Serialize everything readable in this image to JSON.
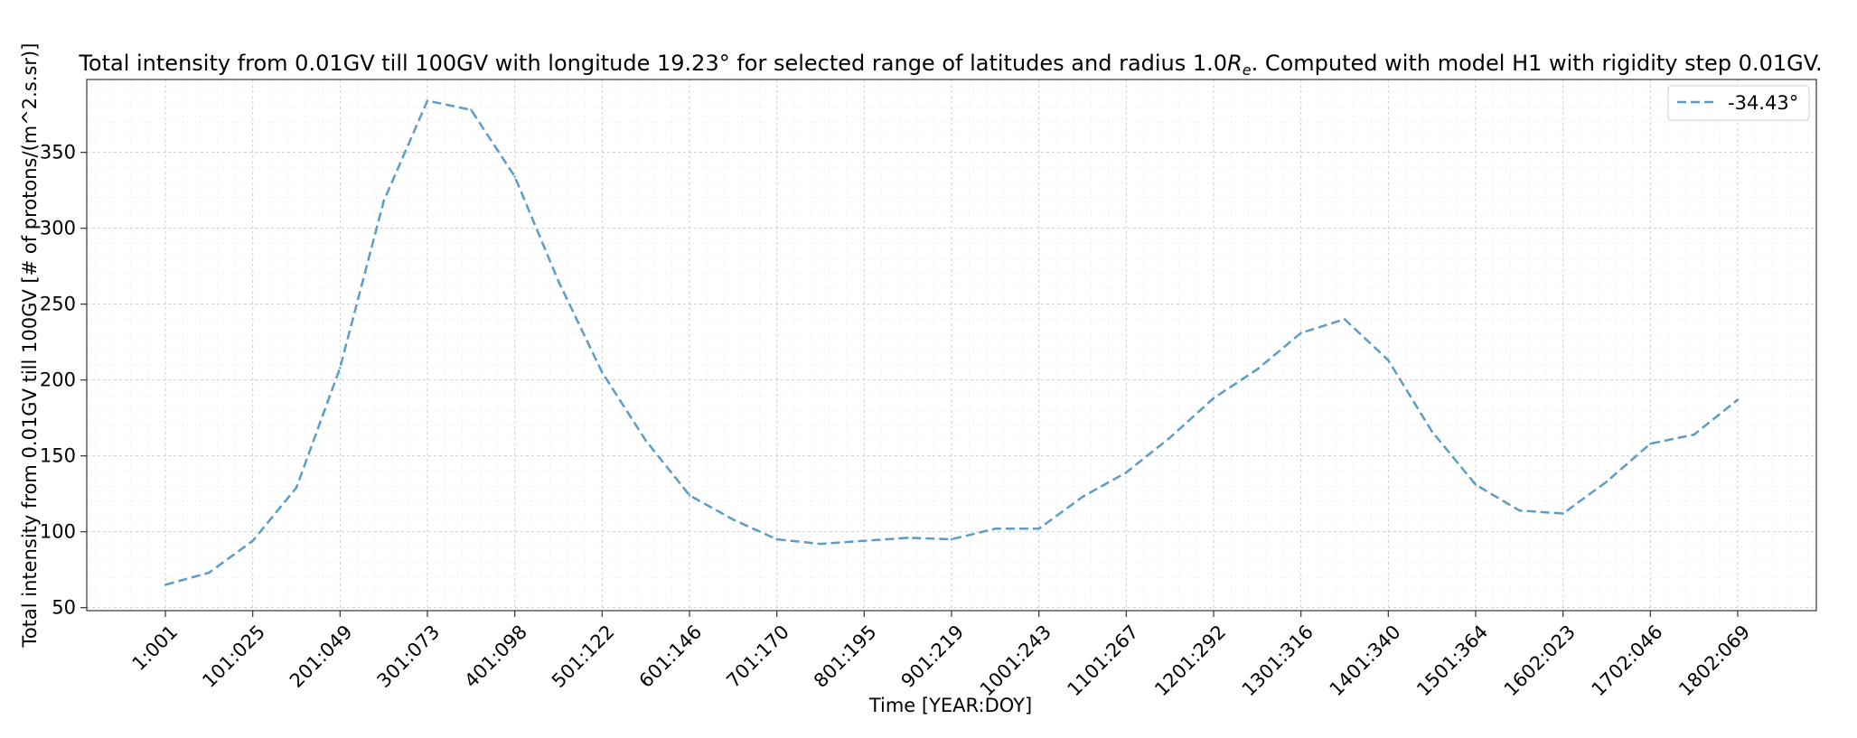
{
  "chart_data": {
    "type": "line",
    "title_main": "Total intensity from 0.01GV till 100GV with longitude 19.23° for selected range of latitudes and radius 1.0",
    "title_symbol": "R",
    "title_subscript": "e",
    "title_tail": ". Computed with model H1 with rigidity step 0.01GV.",
    "xlabel": "Time [YEAR:DOY]",
    "ylabel": "Total intensity from 0.01GV till 100GV [# of protons/(m^2.s.sr)]",
    "x_tick_labels": [
      "1:001",
      "101:025",
      "201:049",
      "301:073",
      "401:098",
      "501:122",
      "601:146",
      "701:170",
      "801:195",
      "901:219",
      "1001:243",
      "1101:267",
      "1201:292",
      "1301:316",
      "1401:340",
      "1501:364",
      "1602:023",
      "1702:046",
      "1802:069"
    ],
    "y_ticks": [
      50,
      100,
      150,
      200,
      250,
      300,
      350
    ],
    "ylim": [
      48,
      398
    ],
    "xlim": [
      -90,
      1890
    ],
    "grid": true,
    "legend_position": "upper-right",
    "series": [
      {
        "name": "-34.43°",
        "color": "#5b9cc8",
        "style": "dashed",
        "x": [
          0,
          50,
          100,
          150,
          200,
          250,
          300,
          350,
          400,
          450,
          500,
          550,
          600,
          650,
          700,
          750,
          800,
          850,
          900,
          950,
          1000,
          1050,
          1100,
          1150,
          1200,
          1250,
          1300,
          1350,
          1400,
          1450,
          1500,
          1550,
          1600,
          1650,
          1700,
          1750,
          1800
        ],
        "y": [
          65,
          73,
          94,
          129,
          208,
          318,
          384,
          378,
          334,
          265,
          205,
          160,
          124,
          108,
          95,
          92,
          94,
          96,
          95,
          102,
          102,
          123,
          139,
          162,
          188,
          207,
          231,
          240,
          213,
          166,
          131,
          114,
          112,
          133,
          158,
          164,
          187
        ]
      }
    ]
  }
}
